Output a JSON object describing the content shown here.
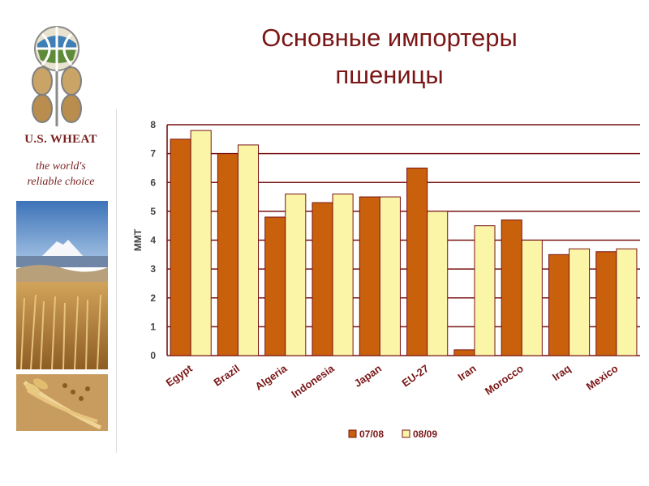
{
  "brand": {
    "name": "U.S. WHEAT",
    "tagline_line1": "the world's",
    "tagline_line2": "reliable choice"
  },
  "title": {
    "line1": "Основные импортеры",
    "line2": "пшеницы"
  },
  "colors": {
    "series1": "#c8600c",
    "series2": "#fbf5a8",
    "title": "#7b1616",
    "axis": "#7a1414"
  },
  "chart_data": {
    "type": "bar",
    "categories": [
      "Egypt",
      "Brazil",
      "Algeria",
      "Indonesia",
      "Japan",
      "EU-27",
      "Iran",
      "Morocco",
      "Iraq",
      "Mexico"
    ],
    "series": [
      {
        "name": "07/08",
        "values": [
          7.5,
          7.0,
          4.8,
          5.3,
          5.5,
          6.5,
          0.2,
          4.7,
          3.5,
          3.6
        ]
      },
      {
        "name": "08/09",
        "values": [
          7.8,
          7.3,
          5.6,
          5.6,
          5.5,
          5.0,
          4.5,
          4.0,
          3.7,
          3.7
        ]
      }
    ],
    "ylabel": "MMT",
    "xlabel": "",
    "ylim": [
      0,
      8
    ],
    "yticks": [
      0,
      1,
      2,
      3,
      4,
      5,
      6,
      7,
      8
    ],
    "grid": true,
    "legend": "bottom"
  }
}
